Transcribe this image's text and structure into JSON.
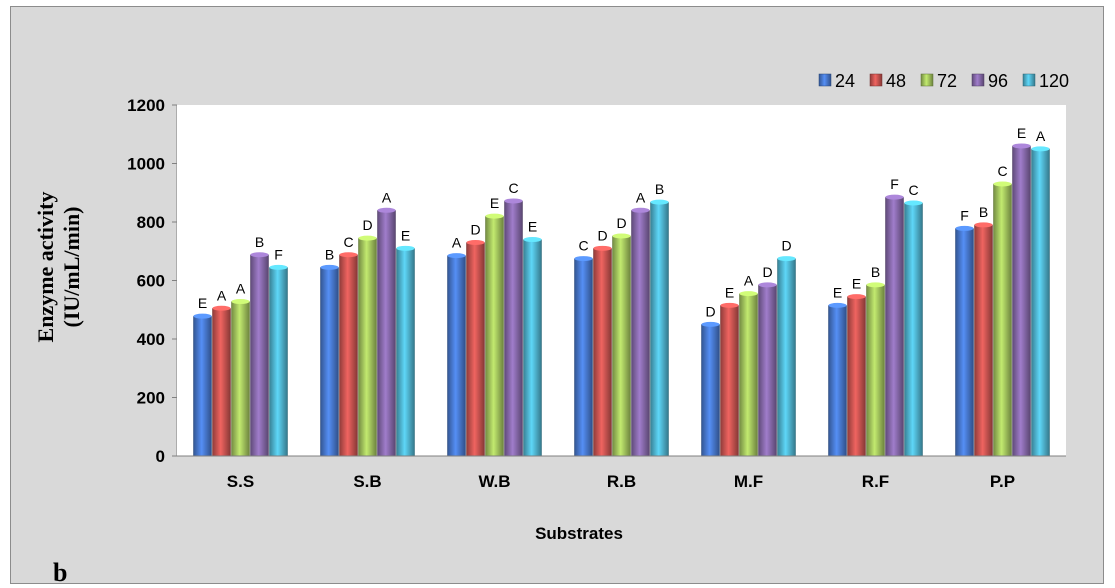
{
  "panel_label": "b",
  "colors": {
    "24": "#4472c4",
    "48": "#c0504d",
    "72": "#9bbb59",
    "96": "#8064a2",
    "120": "#4bacc6"
  },
  "chart_data": {
    "type": "bar",
    "xlabel": "Substrates",
    "ylabel_line1": "Enzyme activity",
    "ylabel_line2": "(IU/mL/min)",
    "ylim": [
      0,
      1200
    ],
    "yticks": [
      "0",
      "200",
      "400",
      "600",
      "800",
      "1000",
      "1200"
    ],
    "grid": false,
    "legend_position": "top-right",
    "categories": [
      "S.S",
      "S.B",
      "W.B",
      "R.B",
      "M.F",
      "R.F",
      "P.P"
    ],
    "series": [
      {
        "name": "24",
        "values": [
          478,
          645,
          685,
          675,
          450,
          515,
          778
        ],
        "letters": [
          "E",
          "B",
          "A",
          "C",
          "D",
          "E",
          "F"
        ]
      },
      {
        "name": "48",
        "values": [
          505,
          688,
          730,
          710,
          515,
          545,
          790
        ],
        "letters": [
          "A",
          "C",
          "D",
          "D",
          "E",
          "E",
          "B"
        ]
      },
      {
        "name": "72",
        "values": [
          528,
          745,
          820,
          752,
          555,
          585,
          930
        ],
        "letters": [
          "A",
          "D",
          "E",
          "D",
          "A",
          "B",
          "C"
        ]
      },
      {
        "name": "96",
        "values": [
          688,
          840,
          872,
          840,
          585,
          885,
          1060
        ],
        "letters": [
          "B",
          "A",
          "C",
          "A",
          "D",
          "F",
          "E"
        ]
      },
      {
        "name": "120",
        "values": [
          645,
          710,
          740,
          868,
          675,
          865,
          1050
        ],
        "letters": [
          "F",
          "E",
          "E",
          "B",
          "D",
          "C",
          "A"
        ]
      }
    ]
  }
}
